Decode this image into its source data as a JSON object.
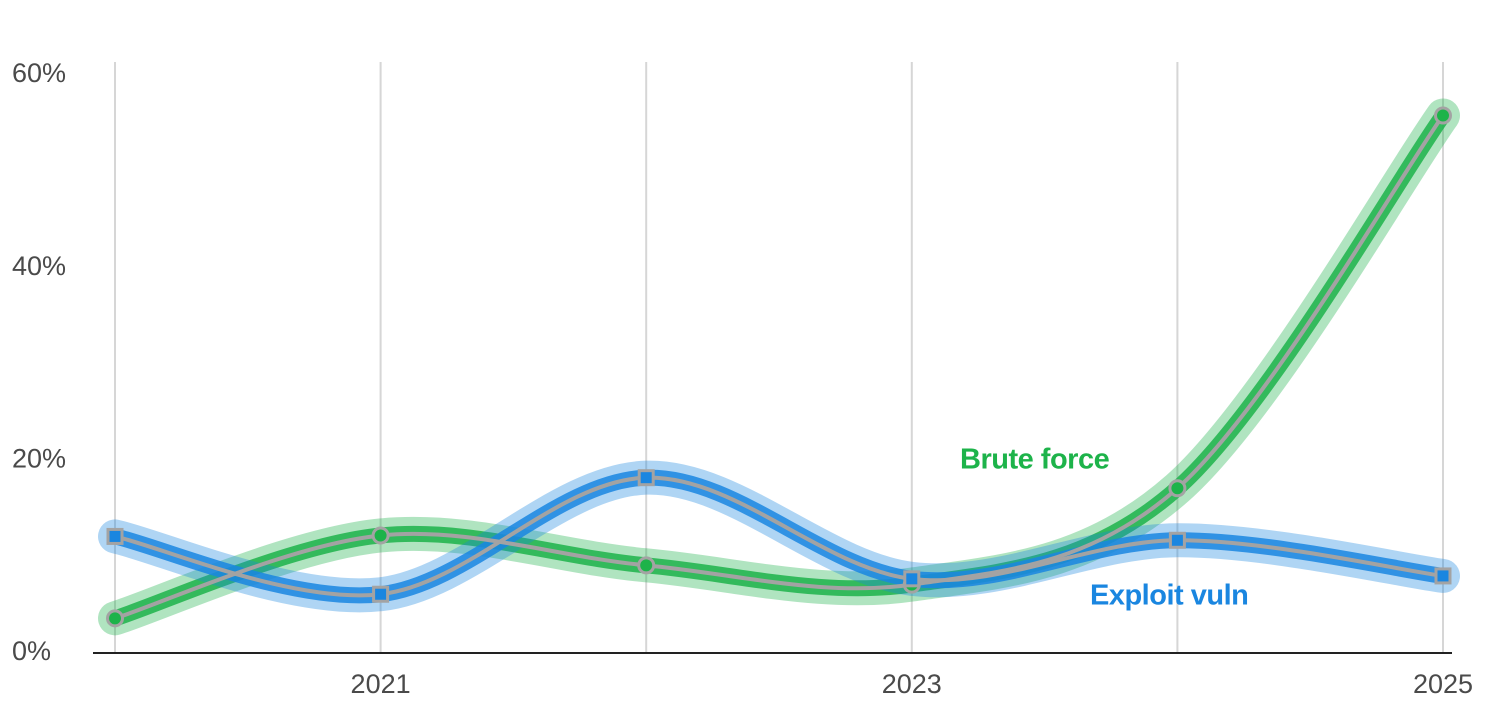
{
  "chart_data": {
    "type": "line",
    "categories": [
      null,
      "2021",
      null,
      "2023",
      null,
      "2025"
    ],
    "series": [
      {
        "name": "Brute force",
        "color": "#1db34a",
        "marker": "circle",
        "values": [
          3.6,
          12.2,
          9.1,
          7.1,
          17.1,
          55.8
        ]
      },
      {
        "name": "Exploit vuln",
        "color": "#1a86e0",
        "marker": "square",
        "values": [
          12.1,
          6.1,
          18.2,
          7.7,
          11.7,
          8.0
        ]
      }
    ],
    "line_color": "#a3a3a3",
    "ylim": [
      0,
      60
    ],
    "yticks": [
      {
        "value": 0,
        "label": "0%"
      },
      {
        "value": 20,
        "label": "20%"
      },
      {
        "value": 40,
        "label": "40%"
      },
      {
        "value": 60,
        "label": "60%"
      }
    ],
    "grid": "x"
  }
}
